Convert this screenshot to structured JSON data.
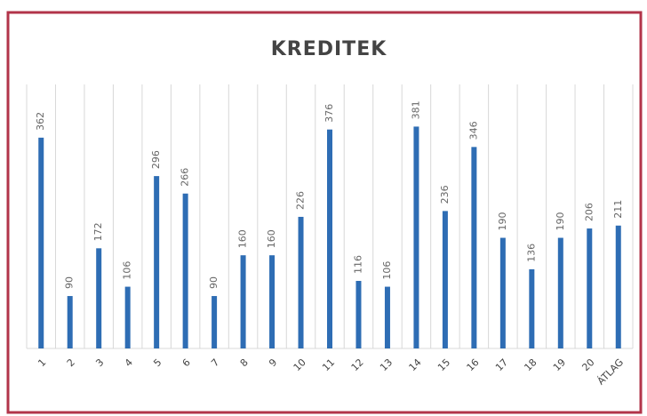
{
  "chart_data": {
    "type": "bar",
    "title": "KREDITEK",
    "categories": [
      "1",
      "2",
      "3",
      "4",
      "5",
      "6",
      "7",
      "8",
      "9",
      "10",
      "11",
      "12",
      "13",
      "14",
      "15",
      "16",
      "17",
      "18",
      "19",
      "20",
      "ÁTLAG"
    ],
    "values": [
      362,
      90,
      172,
      106,
      296,
      266,
      90,
      160,
      160,
      226,
      376,
      116,
      106,
      381,
      236,
      346,
      190,
      136,
      190,
      206,
      211
    ],
    "color": "#2e6db4"
  }
}
